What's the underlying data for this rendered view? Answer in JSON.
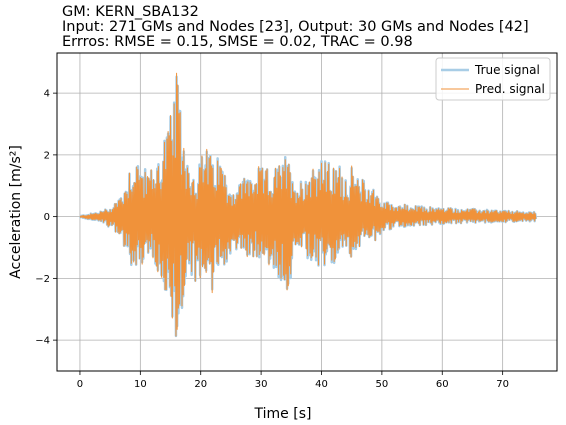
{
  "title_lines": [
    "GM: KERN_SBA132",
    "Input: 271 GMs and Nodes [23], Output: 30 GMs and Nodes [42]",
    "Errros: RMSE = 0.15, SMSE = 0.02, TRAC = 0.98"
  ],
  "chart_data": {
    "type": "line",
    "title": "GM: KERN_SBA132",
    "xlabel": "Time [s]",
    "ylabel": "Acceleration [m/s²]",
    "xlim": [
      -3.8,
      79.0
    ],
    "ylim": [
      -5.0,
      5.3
    ],
    "xticks": [
      0,
      10,
      20,
      30,
      40,
      50,
      60,
      70
    ],
    "yticks": [
      -4,
      -2,
      0,
      2,
      4
    ],
    "grid": true,
    "legend_position": "top-right",
    "duration_s": 75.5,
    "series": [
      {
        "name": "True signal",
        "color": "#a8cde6",
        "width": 2.5
      },
      {
        "name": "Pred. signal",
        "color": "#f0923a",
        "width": 1.0
      }
    ],
    "envelope": {
      "t": [
        0,
        3,
        5,
        7,
        8.3,
        9,
        11,
        12,
        13,
        14,
        15,
        16,
        17,
        18,
        19,
        20,
        21,
        22,
        23,
        24,
        25,
        26,
        27,
        28,
        30,
        32,
        34,
        35,
        36,
        37,
        38,
        39,
        40,
        41,
        42,
        43,
        44,
        45,
        46,
        47,
        48,
        49,
        50,
        52,
        55,
        60,
        65,
        70,
        75
      ],
      "pos": [
        0.02,
        0.15,
        0.3,
        0.8,
        1.7,
        2.1,
        1.5,
        1.6,
        2.0,
        2.8,
        3.3,
        4.6,
        3.0,
        1.9,
        1.4,
        1.9,
        2.5,
        1.7,
        2.1,
        1.5,
        0.9,
        1.0,
        1.3,
        1.4,
        1.6,
        1.5,
        2.0,
        1.7,
        1.1,
        1.3,
        1.6,
        1.9,
        1.9,
        1.8,
        1.6,
        1.7,
        1.4,
        1.6,
        1.3,
        1.2,
        1.1,
        0.9,
        0.5,
        0.45,
        0.35,
        0.3,
        0.25,
        0.2,
        0.15
      ],
      "neg": [
        -0.02,
        -0.15,
        -0.35,
        -0.8,
        -1.5,
        -2.0,
        -1.3,
        -1.5,
        -2.0,
        -3.0,
        -3.8,
        -4.5,
        -2.8,
        -1.9,
        -2.3,
        -2.8,
        -2.4,
        -2.5,
        -1.5,
        -1.6,
        -1.3,
        -1.1,
        -1.4,
        -1.3,
        -1.4,
        -1.7,
        -2.5,
        -2.1,
        -1.2,
        -1.3,
        -1.5,
        -1.7,
        -1.8,
        -1.7,
        -1.6,
        -1.4,
        -1.2,
        -1.3,
        -1.0,
        -0.9,
        -0.8,
        -0.8,
        -0.5,
        -0.4,
        -0.3,
        -0.25,
        -0.2,
        -0.18,
        -0.15
      ]
    }
  }
}
